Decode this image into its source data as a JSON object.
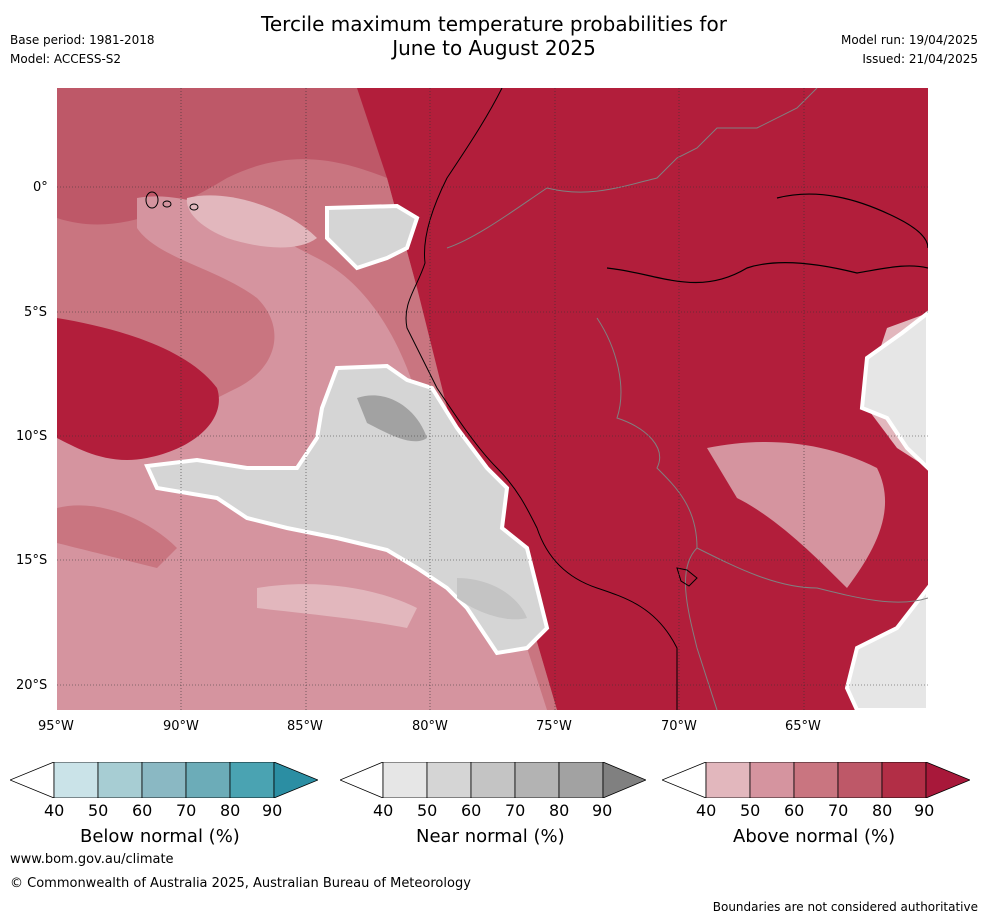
{
  "header": {
    "title_line1": "Tercile maximum temperature probabilities for",
    "title_line2": "June to August 2025",
    "base_period": "Base period: 1981-2018",
    "model": "Model: ACCESS-S2",
    "model_run": "Model run: 19/04/2025",
    "issued": "Issued: 21/04/2025"
  },
  "map": {
    "lat_labels": [
      "0°",
      "5°S",
      "10°S",
      "15°S",
      "20°S"
    ],
    "lon_labels": [
      "95°W",
      "90°W",
      "85°W",
      "80°W",
      "75°W",
      "70°W",
      "65°W"
    ]
  },
  "colorbars": [
    {
      "label": "Below normal (%)",
      "ticks": [
        "40",
        "50",
        "60",
        "70",
        "80",
        "90"
      ],
      "colors": [
        "#ffffff",
        "#cae3e8",
        "#a7cdd3",
        "#8ab8c3",
        "#6cacb8",
        "#4aa3b2",
        "#2b8ea3"
      ]
    },
    {
      "label": "Near normal (%)",
      "ticks": [
        "40",
        "50",
        "60",
        "70",
        "80",
        "90"
      ],
      "colors": [
        "#ffffff",
        "#e6e6e6",
        "#d5d5d5",
        "#c4c4c4",
        "#b3b3b3",
        "#a2a2a2",
        "#808080"
      ]
    },
    {
      "label": "Above normal (%)",
      "ticks": [
        "40",
        "50",
        "60",
        "70",
        "80",
        "90"
      ],
      "colors": [
        "#ffffff",
        "#e2b7bd",
        "#d5949f",
        "#c97580",
        "#be5868",
        "#b22e46",
        "#a8183a"
      ]
    }
  ],
  "footer": {
    "url": "www.bom.gov.au/climate",
    "copyright": "© Commonwealth of Australia 2025, Australian Bureau of Meteorology",
    "disclaimer": "Boundaries are not considered authoritative"
  }
}
